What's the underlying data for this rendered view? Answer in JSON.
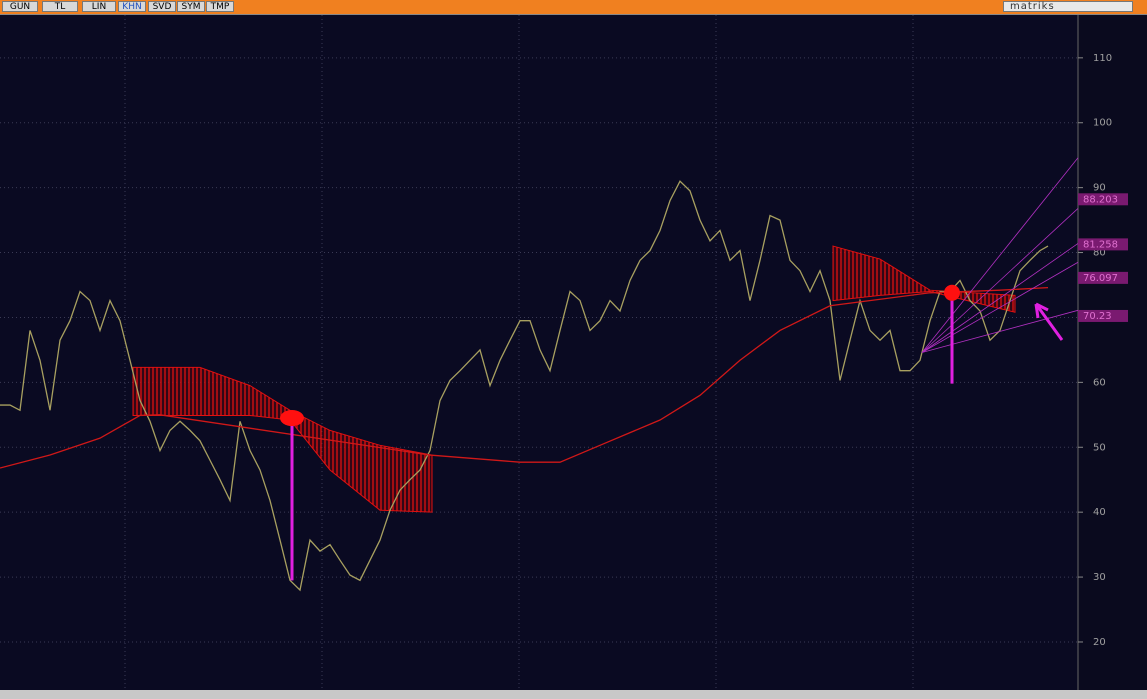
{
  "toolbar": {
    "buttons": [
      "GUN",
      "TL",
      "LIN",
      "KHN",
      "SVD",
      "SYM",
      "TMP"
    ],
    "brand": "matriks"
  },
  "chart_data": {
    "type": "line",
    "xlim": [
      0,
      107.8
    ],
    "ylim": [
      12.6,
      116.6
    ],
    "yticks": [
      20,
      30,
      40,
      50,
      60,
      70,
      80,
      90,
      100,
      110
    ],
    "grid": true,
    "x": [
      0,
      1,
      2,
      3,
      4,
      5,
      6,
      7,
      8,
      9,
      10,
      11,
      12,
      13,
      14,
      15,
      16,
      17,
      18,
      19,
      20,
      21,
      22,
      23,
      24,
      25,
      26,
      27,
      28,
      29,
      30,
      31,
      32,
      33,
      34,
      35,
      36,
      37,
      38,
      39,
      40,
      41,
      42,
      43,
      44,
      45,
      46,
      47,
      48,
      49,
      50,
      51,
      52,
      53,
      54,
      55,
      56,
      57,
      58,
      59,
      60,
      61,
      62,
      63,
      64,
      65,
      66,
      67,
      68,
      69,
      70,
      71,
      72,
      73,
      74,
      75,
      76,
      77,
      78,
      79,
      80,
      81,
      82,
      83,
      84,
      85,
      86,
      87,
      88,
      89,
      90,
      91,
      92,
      93,
      94,
      95,
      96,
      97,
      98,
      99,
      100,
      101,
      102,
      103,
      104,
      104.8
    ],
    "series": [
      {
        "name": "price",
        "color": "#a8a060",
        "values": [
          56.5,
          56.5,
          55.7,
          68,
          63.4,
          55.7,
          66.5,
          69.5,
          74,
          72.6,
          68,
          72.6,
          69.5,
          63.4,
          57.2,
          54,
          49.5,
          52.6,
          54,
          52.6,
          51,
          48,
          45,
          41.8,
          54,
          49.5,
          46.5,
          41.8,
          35.7,
          29.5,
          28,
          35.7,
          34,
          35,
          32.6,
          30.3,
          29.5,
          32.6,
          35.7,
          40.3,
          43.4,
          45,
          46.5,
          49.5,
          57.2,
          60.3,
          61.8,
          63.4,
          65,
          59.5,
          63.4,
          66.5,
          69.5,
          69.5,
          65,
          61.8,
          68,
          74,
          72.6,
          68,
          69.5,
          72.6,
          71,
          75.7,
          78.8,
          80.3,
          83.4,
          88,
          91,
          89.5,
          85,
          81.8,
          83.4,
          78.8,
          80.3,
          72.6,
          78.8,
          85.7,
          85,
          78.8,
          77.2,
          74,
          77.2,
          72.6,
          60.3,
          66.5,
          72.6,
          68,
          66.5,
          68,
          61.8,
          61.8,
          63.4,
          69.5,
          74,
          74,
          75.7,
          72.6,
          71,
          66.5,
          68,
          72.6,
          77.2,
          78.8,
          80.3,
          81
        ]
      },
      {
        "name": "average",
        "color": "#d01818",
        "x": [
          0,
          5,
          10,
          14,
          16,
          43,
          52,
          56,
          60,
          66,
          70,
          74,
          78,
          83,
          93,
          100,
          104.8
        ],
        "values": [
          46.8,
          48.8,
          51.4,
          54.9,
          55,
          48.8,
          47.7,
          47.7,
          50.3,
          54.2,
          58,
          63.4,
          68,
          71.8,
          73.8,
          74.2,
          74.6
        ]
      }
    ],
    "bands": [
      {
        "x": [
          13.3,
          20,
          25,
          29,
          33,
          38,
          43.2
        ],
        "upper": [
          62.3,
          62.3,
          59.5,
          55.7,
          52.6,
          50.3,
          48.8
        ],
        "lower": [
          54.9,
          54.9,
          54.9,
          54.2,
          46.5,
          40.3,
          40
        ]
      },
      {
        "x": [
          83.3,
          88,
          93,
          101.5
        ],
        "upper": [
          81,
          79,
          74.2,
          73.4
        ],
        "lower": [
          72.6,
          73.4,
          74,
          70.8
        ]
      }
    ],
    "markers": {
      "x": [
        29.2,
        95.2
      ],
      "values": [
        54.5,
        73.8
      ]
    },
    "drop_lines": [
      {
        "x": 29.2,
        "from": 54.5,
        "to": 29.5
      },
      {
        "x": 95.2,
        "from": 73.8,
        "to": 59.8
      }
    ],
    "fan": {
      "x": 92.2,
      "value": 64.6,
      "to_x": 107.8,
      "targets": [
        94.6,
        86.8,
        81.4,
        78.5,
        71.1
      ]
    },
    "price_labels": [
      88.203,
      81.258,
      76.097,
      70.23
    ]
  }
}
